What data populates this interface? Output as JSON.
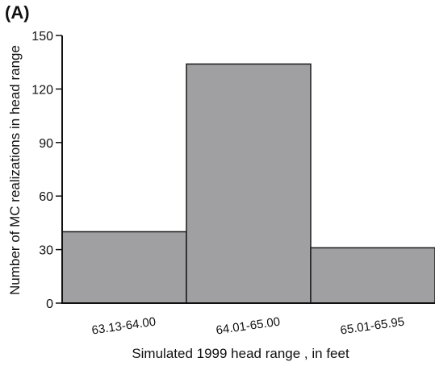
{
  "panel_label": "(A)",
  "chart_data": {
    "type": "bar",
    "title": "",
    "panel_label": "(A)",
    "xlabel": "Simulated 1999 head range , in feet",
    "ylabel": "Number of MC realizations in head range",
    "categories": [
      "63.13-64.00",
      "64.01-65.00",
      "65.01-65.95"
    ],
    "values": [
      40,
      134,
      31
    ],
    "ylim": [
      0,
      150
    ],
    "yticks": [
      0,
      30,
      60,
      90,
      120,
      150
    ],
    "ytick_labels": [
      "0",
      "30",
      "60",
      "90",
      "120",
      "150"
    ],
    "grid": false,
    "legend": "none",
    "bar_color": "#a0a0a2",
    "bar_edge_color": "#1a1a1a"
  }
}
